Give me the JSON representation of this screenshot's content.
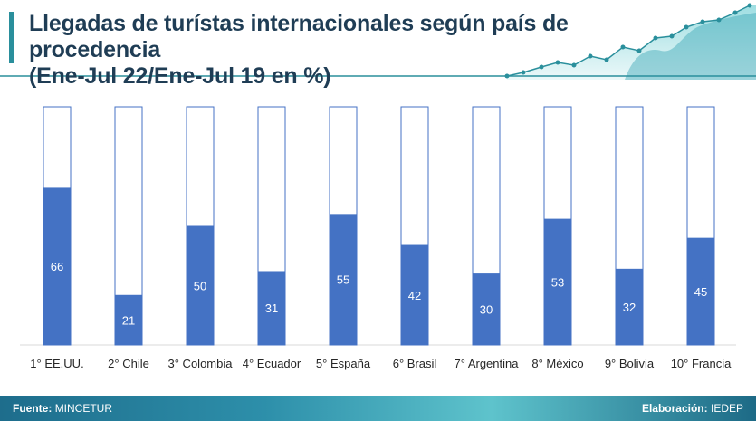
{
  "header": {
    "title_line1": "Llegadas de turístas internacionales según país de procedencia",
    "title_line2": "(Ene-Jul 22/Ene-Jul 19 en %)"
  },
  "footer": {
    "source_label": "Fuente:",
    "source_value": "MINCETUR",
    "credit_label": "Elaboración:",
    "credit_value": "IEDEP"
  },
  "colors": {
    "bar_fill": "#4472c4",
    "bar_outline": "#4472c4",
    "accent": "#2a8f9c",
    "title": "#1f3d55"
  },
  "chart_data": {
    "type": "bar",
    "title": "Llegadas de turístas internacionales según país de procedencia (Ene-Jul 22/Ene-Jul 19 en %)",
    "categories": [
      "1° EE.UU.",
      "2° Chile",
      "3° Colombia",
      "4° Ecuador",
      "5° España",
      "6° Brasil",
      "7° Argentina",
      "8° México",
      "9° Bolivia",
      "10° Francia"
    ],
    "values": [
      66,
      21,
      50,
      31,
      55,
      42,
      30,
      53,
      32,
      45
    ],
    "ylim": [
      0,
      100
    ],
    "xlabel": "",
    "ylabel": "",
    "grid": false,
    "legend": "none"
  }
}
